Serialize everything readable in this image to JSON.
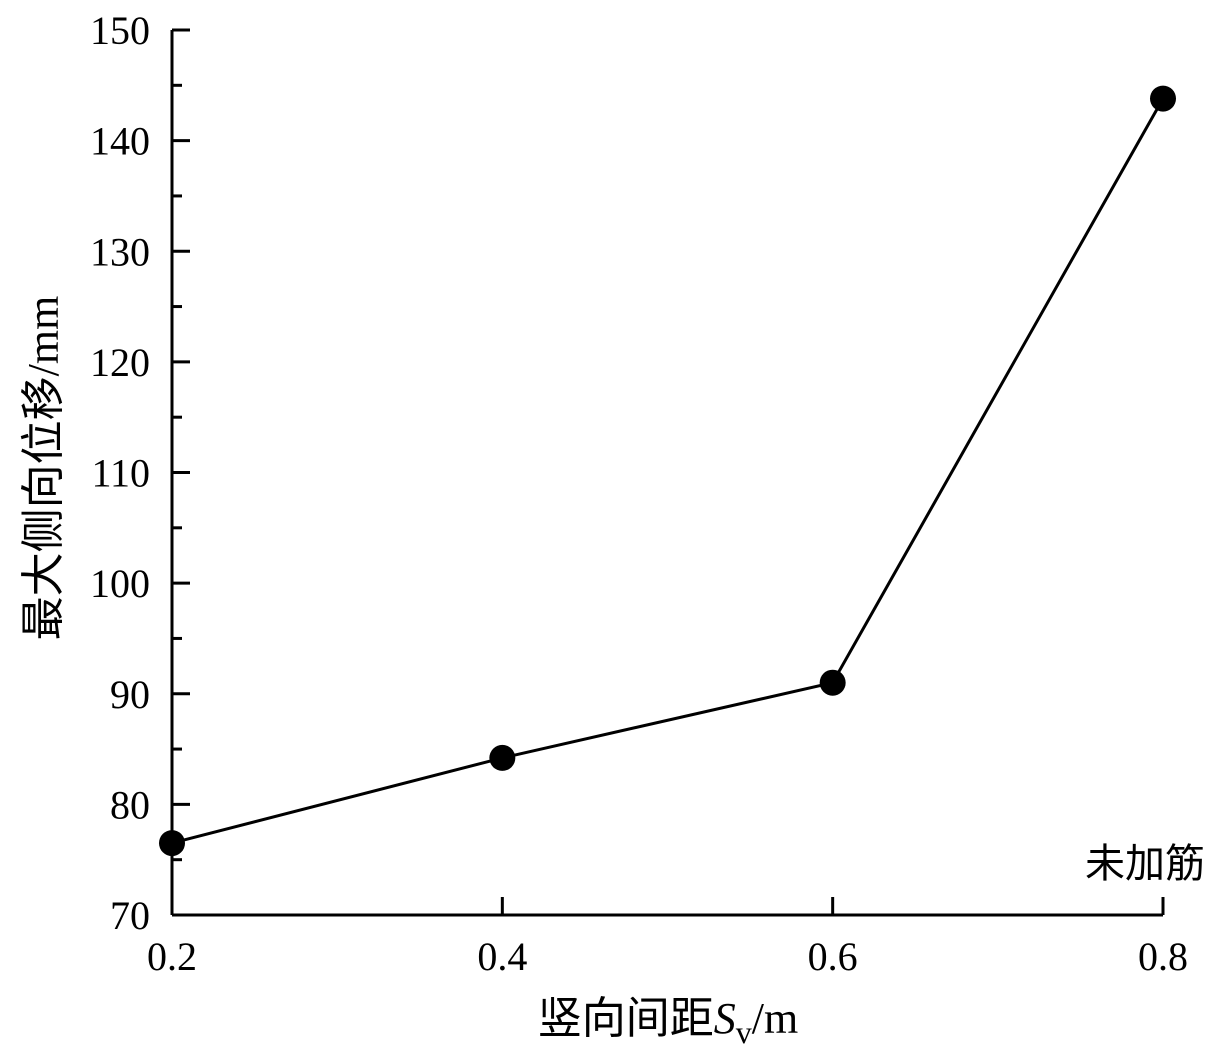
{
  "chart_data": {
    "type": "line",
    "title": "",
    "x": [
      0.2,
      0.4,
      0.6,
      0.8
    ],
    "series": [
      {
        "values": [
          76.5,
          84.2,
          91.0,
          143.8
        ]
      }
    ],
    "xlim": [
      0.2,
      0.8
    ],
    "ylim": [
      70,
      150
    ],
    "x_ticks": [
      "0.2",
      "0.4",
      "0.6",
      "0.8"
    ],
    "y_ticks": [
      "70",
      "80",
      "90",
      "100",
      "110",
      "120",
      "130",
      "140",
      "150"
    ],
    "xlabel": {
      "text": "竖向间距",
      "symbol": "S",
      "subscript": "v",
      "unit": "/m"
    },
    "ylabel": {
      "text": "最大侧向位移",
      "unit": "/mm"
    },
    "annotations": [
      {
        "text": "未加筋",
        "x": 0.8
      }
    ],
    "grid": false,
    "legend": "none",
    "colors": {
      "line": "#000000",
      "marker": "#000000",
      "axis": "#000000"
    }
  }
}
